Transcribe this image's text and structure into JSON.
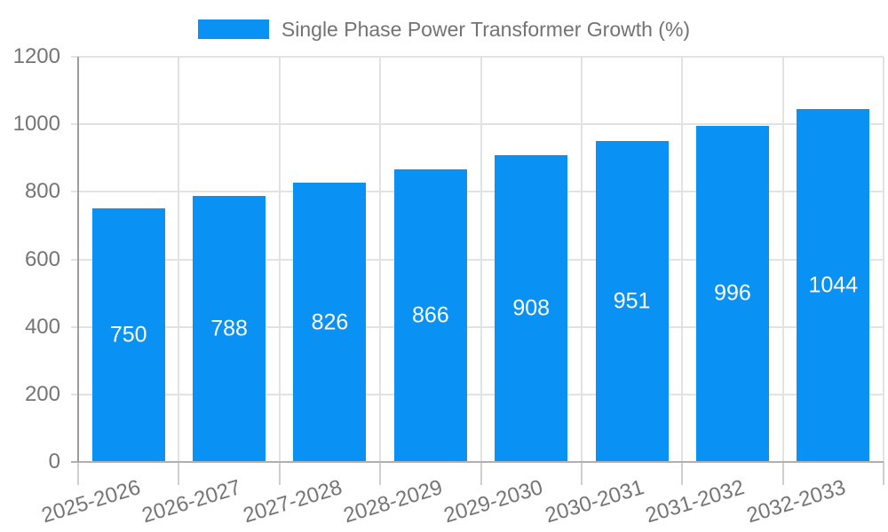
{
  "legend": {
    "label": "Single Phase Power Transformer Growth (%)"
  },
  "chart_data": {
    "type": "bar",
    "title": "Single Phase Power Transformer Growth (%)",
    "categories": [
      "2025-2026",
      "2026-2027",
      "2027-2028",
      "2028-2029",
      "2029-2030",
      "2030-2031",
      "2031-2032",
      "2032-2033"
    ],
    "values": [
      750,
      788,
      826,
      866,
      908,
      951,
      996,
      1044
    ],
    "xlabel": "",
    "ylabel": "",
    "ylim": [
      0,
      1200
    ],
    "yticks": [
      0,
      200,
      400,
      600,
      800,
      1000,
      1200
    ],
    "grid": true,
    "legend_position": "top-center",
    "value_labels": "inside-center",
    "x_label_rotation_deg": -17,
    "colors": {
      "bar": "#0a91f4",
      "value_label": "#ffffff",
      "axis_text": "#757575",
      "legend_text": "#737373",
      "gridline": "#e2e2e2",
      "tick": "#cfcfcf",
      "baseline": "#b0b0b0",
      "axis_line": "#9c9c9c",
      "background": "#ffffff"
    }
  }
}
